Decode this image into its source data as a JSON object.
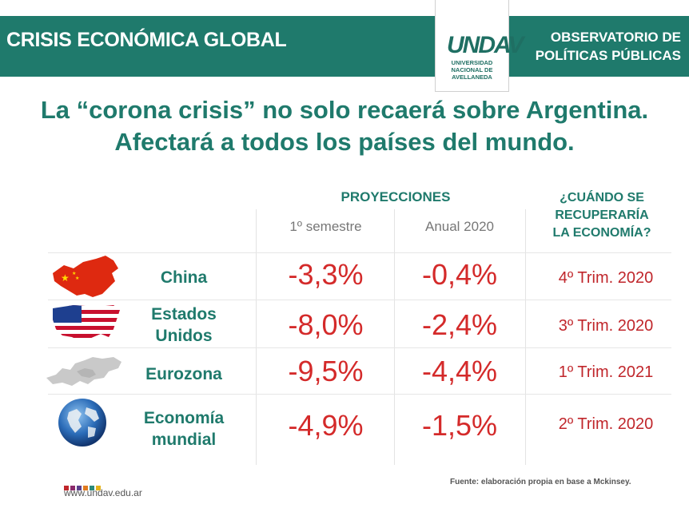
{
  "header": {
    "left_title": "CRISIS ECONÓMICA GLOBAL",
    "right_title_line1": "OBSERVATORIO DE",
    "right_title_line2": "POLÍTICAS PÚBLICAS",
    "logo_mark": "UNDAV",
    "logo_text_line1": "UNIVERSIDAD",
    "logo_text_line2": "NACIONAL DE",
    "logo_text_line3": "AVELLANEDA"
  },
  "headline": {
    "line1": "La “corona crisis” no solo recaerá sobre Argentina.",
    "line2": "Afectará a todos los países del mundo."
  },
  "table": {
    "proyecciones_label": "PROYECCIONES",
    "col1": "1º semestre",
    "col2": "Anual 2020",
    "recovery_header_line1": "¿CUÁNDO SE",
    "recovery_header_line2": "RECUPERARÍA",
    "recovery_header_line3": "LA ECONOMÍA?",
    "rows": [
      {
        "label_line1": "China",
        "label_line2": "",
        "icon": "china-map-icon",
        "semestre": "-3,3%",
        "anual": "-0,4%",
        "recovery": "4º Trim. 2020"
      },
      {
        "label_line1": "Estados",
        "label_line2": "Unidos",
        "icon": "usa-map-icon",
        "semestre": "-8,0%",
        "anual": "-2,4%",
        "recovery": "3º Trim. 2020"
      },
      {
        "label_line1": "Eurozona",
        "label_line2": "",
        "icon": "europe-map-icon",
        "semestre": "-9,5%",
        "anual": "-4,4%",
        "recovery": "1º Trim. 2021"
      },
      {
        "label_line1": "Economía",
        "label_line2": "mundial",
        "icon": "globe-icon",
        "semestre": "-4,9%",
        "anual": "-1,5%",
        "recovery": "2º Trim. 2020"
      }
    ]
  },
  "footer": {
    "url": "www.undav.edu.ar",
    "source": "Fuente: elaboración propia en base a Mckinsey."
  },
  "colors": {
    "brand_green": "#1f7a6c",
    "value_red": "#d42a2a"
  }
}
